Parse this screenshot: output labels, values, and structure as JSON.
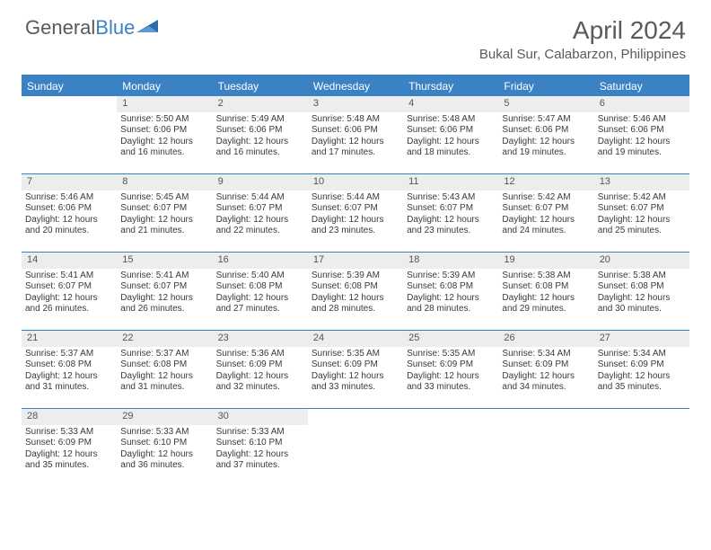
{
  "brand": {
    "name_part1": "General",
    "name_part2": "Blue"
  },
  "title": "April 2024",
  "location": "Bukal Sur, Calabarzon, Philippines",
  "colors": {
    "accent": "#3b82c4",
    "text_muted": "#5a5a5a",
    "daynum_bg": "#eceded",
    "body_text": "#3a3a3a",
    "background": "#ffffff"
  },
  "typography": {
    "title_fontsize": 28,
    "location_fontsize": 15,
    "dow_fontsize": 12,
    "cell_fontsize": 10
  },
  "days_of_week": [
    "Sunday",
    "Monday",
    "Tuesday",
    "Wednesday",
    "Thursday",
    "Friday",
    "Saturday"
  ],
  "weeks": [
    [
      {
        "day": "",
        "sunrise": "",
        "sunset": "",
        "daylight": ""
      },
      {
        "day": "1",
        "sunrise": "Sunrise: 5:50 AM",
        "sunset": "Sunset: 6:06 PM",
        "daylight": "Daylight: 12 hours and 16 minutes."
      },
      {
        "day": "2",
        "sunrise": "Sunrise: 5:49 AM",
        "sunset": "Sunset: 6:06 PM",
        "daylight": "Daylight: 12 hours and 16 minutes."
      },
      {
        "day": "3",
        "sunrise": "Sunrise: 5:48 AM",
        "sunset": "Sunset: 6:06 PM",
        "daylight": "Daylight: 12 hours and 17 minutes."
      },
      {
        "day": "4",
        "sunrise": "Sunrise: 5:48 AM",
        "sunset": "Sunset: 6:06 PM",
        "daylight": "Daylight: 12 hours and 18 minutes."
      },
      {
        "day": "5",
        "sunrise": "Sunrise: 5:47 AM",
        "sunset": "Sunset: 6:06 PM",
        "daylight": "Daylight: 12 hours and 19 minutes."
      },
      {
        "day": "6",
        "sunrise": "Sunrise: 5:46 AM",
        "sunset": "Sunset: 6:06 PM",
        "daylight": "Daylight: 12 hours and 19 minutes."
      }
    ],
    [
      {
        "day": "7",
        "sunrise": "Sunrise: 5:46 AM",
        "sunset": "Sunset: 6:06 PM",
        "daylight": "Daylight: 12 hours and 20 minutes."
      },
      {
        "day": "8",
        "sunrise": "Sunrise: 5:45 AM",
        "sunset": "Sunset: 6:07 PM",
        "daylight": "Daylight: 12 hours and 21 minutes."
      },
      {
        "day": "9",
        "sunrise": "Sunrise: 5:44 AM",
        "sunset": "Sunset: 6:07 PM",
        "daylight": "Daylight: 12 hours and 22 minutes."
      },
      {
        "day": "10",
        "sunrise": "Sunrise: 5:44 AM",
        "sunset": "Sunset: 6:07 PM",
        "daylight": "Daylight: 12 hours and 23 minutes."
      },
      {
        "day": "11",
        "sunrise": "Sunrise: 5:43 AM",
        "sunset": "Sunset: 6:07 PM",
        "daylight": "Daylight: 12 hours and 23 minutes."
      },
      {
        "day": "12",
        "sunrise": "Sunrise: 5:42 AM",
        "sunset": "Sunset: 6:07 PM",
        "daylight": "Daylight: 12 hours and 24 minutes."
      },
      {
        "day": "13",
        "sunrise": "Sunrise: 5:42 AM",
        "sunset": "Sunset: 6:07 PM",
        "daylight": "Daylight: 12 hours and 25 minutes."
      }
    ],
    [
      {
        "day": "14",
        "sunrise": "Sunrise: 5:41 AM",
        "sunset": "Sunset: 6:07 PM",
        "daylight": "Daylight: 12 hours and 26 minutes."
      },
      {
        "day": "15",
        "sunrise": "Sunrise: 5:41 AM",
        "sunset": "Sunset: 6:07 PM",
        "daylight": "Daylight: 12 hours and 26 minutes."
      },
      {
        "day": "16",
        "sunrise": "Sunrise: 5:40 AM",
        "sunset": "Sunset: 6:08 PM",
        "daylight": "Daylight: 12 hours and 27 minutes."
      },
      {
        "day": "17",
        "sunrise": "Sunrise: 5:39 AM",
        "sunset": "Sunset: 6:08 PM",
        "daylight": "Daylight: 12 hours and 28 minutes."
      },
      {
        "day": "18",
        "sunrise": "Sunrise: 5:39 AM",
        "sunset": "Sunset: 6:08 PM",
        "daylight": "Daylight: 12 hours and 28 minutes."
      },
      {
        "day": "19",
        "sunrise": "Sunrise: 5:38 AM",
        "sunset": "Sunset: 6:08 PM",
        "daylight": "Daylight: 12 hours and 29 minutes."
      },
      {
        "day": "20",
        "sunrise": "Sunrise: 5:38 AM",
        "sunset": "Sunset: 6:08 PM",
        "daylight": "Daylight: 12 hours and 30 minutes."
      }
    ],
    [
      {
        "day": "21",
        "sunrise": "Sunrise: 5:37 AM",
        "sunset": "Sunset: 6:08 PM",
        "daylight": "Daylight: 12 hours and 31 minutes."
      },
      {
        "day": "22",
        "sunrise": "Sunrise: 5:37 AM",
        "sunset": "Sunset: 6:08 PM",
        "daylight": "Daylight: 12 hours and 31 minutes."
      },
      {
        "day": "23",
        "sunrise": "Sunrise: 5:36 AM",
        "sunset": "Sunset: 6:09 PM",
        "daylight": "Daylight: 12 hours and 32 minutes."
      },
      {
        "day": "24",
        "sunrise": "Sunrise: 5:35 AM",
        "sunset": "Sunset: 6:09 PM",
        "daylight": "Daylight: 12 hours and 33 minutes."
      },
      {
        "day": "25",
        "sunrise": "Sunrise: 5:35 AM",
        "sunset": "Sunset: 6:09 PM",
        "daylight": "Daylight: 12 hours and 33 minutes."
      },
      {
        "day": "26",
        "sunrise": "Sunrise: 5:34 AM",
        "sunset": "Sunset: 6:09 PM",
        "daylight": "Daylight: 12 hours and 34 minutes."
      },
      {
        "day": "27",
        "sunrise": "Sunrise: 5:34 AM",
        "sunset": "Sunset: 6:09 PM",
        "daylight": "Daylight: 12 hours and 35 minutes."
      }
    ],
    [
      {
        "day": "28",
        "sunrise": "Sunrise: 5:33 AM",
        "sunset": "Sunset: 6:09 PM",
        "daylight": "Daylight: 12 hours and 35 minutes."
      },
      {
        "day": "29",
        "sunrise": "Sunrise: 5:33 AM",
        "sunset": "Sunset: 6:10 PM",
        "daylight": "Daylight: 12 hours and 36 minutes."
      },
      {
        "day": "30",
        "sunrise": "Sunrise: 5:33 AM",
        "sunset": "Sunset: 6:10 PM",
        "daylight": "Daylight: 12 hours and 37 minutes."
      },
      {
        "day": "",
        "sunrise": "",
        "sunset": "",
        "daylight": ""
      },
      {
        "day": "",
        "sunrise": "",
        "sunset": "",
        "daylight": ""
      },
      {
        "day": "",
        "sunrise": "",
        "sunset": "",
        "daylight": ""
      },
      {
        "day": "",
        "sunrise": "",
        "sunset": "",
        "daylight": ""
      }
    ]
  ]
}
